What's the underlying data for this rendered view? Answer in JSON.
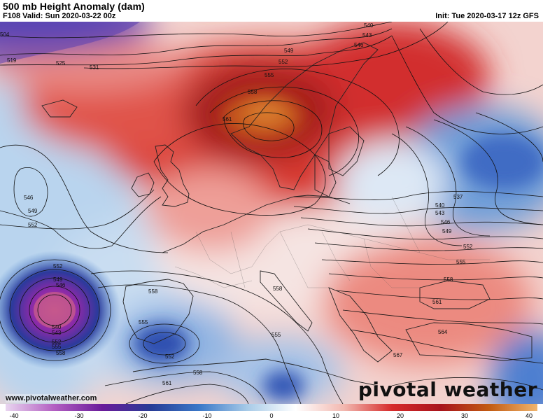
{
  "header": {
    "title": "500 mb Height Anomaly (dam)",
    "valid": "F108 Valid: Sun 2020-03-22 00z",
    "init": "Init: Tue 2020-03-17 12z GFS"
  },
  "credit": "www.pivotalweather.com",
  "brand": "pivotal weather",
  "colorbar": {
    "ticks": [
      "-40",
      "-30",
      "-20",
      "-10",
      "0",
      "10",
      "20",
      "30",
      "40"
    ],
    "stops": [
      "#e9d5f0",
      "#b35fc2",
      "#6a1b9a",
      "#283c96",
      "#3a78c8",
      "#a8cbe8",
      "#ffffff",
      "#f2b8b0",
      "#d62a2a",
      "#a8141c",
      "#c25b12",
      "#f0b56e"
    ]
  },
  "contour_labels": [
    "504",
    "519",
    "525",
    "531",
    "540",
    "543",
    "546",
    "549",
    "552",
    "555",
    "558",
    "561",
    "546",
    "549",
    "552",
    "552",
    "549",
    "546",
    "540",
    "543",
    "552",
    "555",
    "558",
    "552",
    "555",
    "558",
    "558",
    "558",
    "555",
    "561",
    "537",
    "540",
    "543",
    "546",
    "549",
    "552",
    "555",
    "558",
    "561",
    "564",
    "567"
  ]
}
